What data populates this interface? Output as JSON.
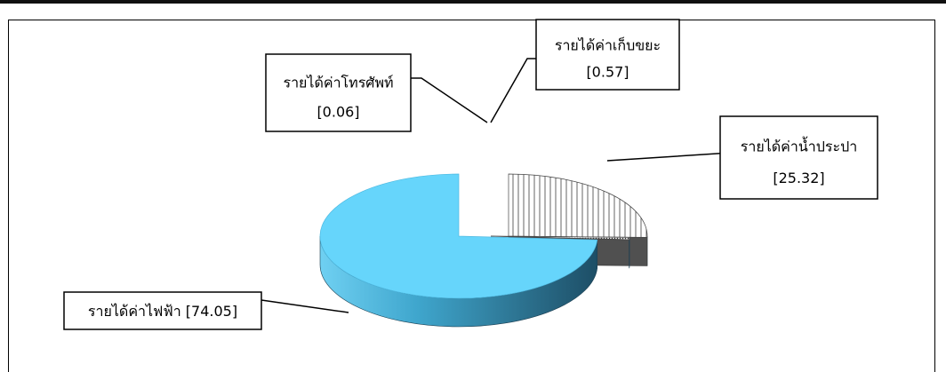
{
  "chart_data": {
    "type": "pie",
    "title": "",
    "style": "3d-exploded",
    "slices": [
      {
        "label": "รายได้ค่าไฟฟ้า",
        "value": 74.05,
        "value_text": "[74.05]",
        "color": "#66d5fb",
        "pattern": "solid"
      },
      {
        "label": "รายได้ค่าโทรศัพท์",
        "value": 0.06,
        "value_text": "[0.06]",
        "color": "#ffffff",
        "pattern": "dots"
      },
      {
        "label": "รายได้ค่าเก็บขยะ",
        "value": 0.57,
        "value_text": "[0.57]",
        "color": "#ffffff",
        "pattern": "dots"
      },
      {
        "label": "รายได้ค่าน้ำประปา",
        "value": 25.32,
        "value_text": "[25.32]",
        "color": "#ffffff",
        "pattern": "vertical-stripes"
      }
    ]
  },
  "colors": {
    "electricity_top": "#66d5fb",
    "electricity_side": "#2f7f9e",
    "water_side": "#505050",
    "frame": "#000000"
  }
}
